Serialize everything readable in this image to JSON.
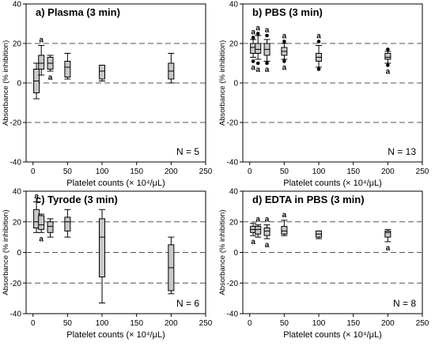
{
  "chart_data": [
    {
      "type": "box",
      "title": "a) Plasma (3 min)",
      "xlabel": "Platelet counts (× 10⁴/μL)",
      "ylabel": "Absorbance (% inhibition)",
      "xlim": [
        -10,
        250
      ],
      "ylim": [
        -40,
        40
      ],
      "xticks": [
        0,
        50,
        100,
        150,
        200,
        250
      ],
      "yticks": [
        -40,
        -20,
        0,
        20,
        40
      ],
      "reference_lines": [
        -20,
        0,
        20
      ],
      "reference_line_style": "dashed",
      "n_label": "N = 5",
      "box_color": "#c8c8c8",
      "boxes": [
        {
          "x": 5,
          "min": -8,
          "q1": -5,
          "median": 1,
          "q3": 7,
          "max": 10,
          "outliers": [],
          "letter": "",
          "letter_pos": "none"
        },
        {
          "x": 12,
          "min": 4,
          "q1": 7,
          "median": 10,
          "q3": 14,
          "max": 19,
          "outliers": [],
          "letter": "a",
          "letter_pos": "above"
        },
        {
          "x": 25,
          "min": 6,
          "q1": 7,
          "median": 10,
          "q3": 13,
          "max": 14,
          "outliers": [],
          "letter": "a",
          "letter_pos": "below"
        },
        {
          "x": 50,
          "min": 2,
          "q1": 3,
          "median": 8,
          "q3": 11,
          "max": 15,
          "outliers": [],
          "letter": "",
          "letter_pos": "none"
        },
        {
          "x": 100,
          "min": 1,
          "q1": 2,
          "median": 6,
          "q3": 9,
          "max": 9,
          "outliers": [],
          "letter": "",
          "letter_pos": "none"
        },
        {
          "x": 200,
          "min": 0,
          "q1": 2,
          "median": 6,
          "q3": 10,
          "max": 15,
          "outliers": [],
          "letter": "",
          "letter_pos": "none"
        }
      ]
    },
    {
      "type": "box",
      "title": "b) PBS (3 min)",
      "xlabel": "Platelet counts (× 10⁴/μL)",
      "ylabel": "Absorbance (% inhibition)",
      "xlim": [
        -10,
        250
      ],
      "ylim": [
        -40,
        40
      ],
      "xticks": [
        0,
        50,
        100,
        150,
        200,
        250
      ],
      "yticks": [
        -40,
        -20,
        0,
        20,
        40
      ],
      "reference_lines": [
        -20,
        0,
        20
      ],
      "reference_line_style": "dashed",
      "n_label": "N = 13",
      "box_color": "#c8c8c8",
      "boxes": [
        {
          "x": 5,
          "min": 13,
          "q1": 15,
          "median": 18,
          "q3": 20,
          "max": 22,
          "outliers": [
            11,
            23
          ],
          "letter": "a",
          "letter_pos": "both"
        },
        {
          "x": 12,
          "min": 12,
          "q1": 15,
          "median": 17,
          "q3": 20,
          "max": 24,
          "outliers": [
            10,
            25
          ],
          "letter": "a",
          "letter_pos": "both"
        },
        {
          "x": 25,
          "min": 11,
          "q1": 14,
          "median": 17,
          "q3": 20,
          "max": 22,
          "outliers": [
            10,
            24
          ],
          "letter": "a",
          "letter_pos": "both"
        },
        {
          "x": 50,
          "min": 12,
          "q1": 14,
          "median": 16,
          "q3": 18,
          "max": 20,
          "outliers": [
            11,
            21
          ],
          "letter": "a",
          "letter_pos": "both"
        },
        {
          "x": 100,
          "min": 8,
          "q1": 11,
          "median": 13,
          "q3": 15,
          "max": 19,
          "outliers": [
            7,
            21
          ],
          "letter": "a",
          "letter_pos": "above"
        },
        {
          "x": 200,
          "min": 10,
          "q1": 12,
          "median": 13,
          "q3": 15,
          "max": 16,
          "outliers": [
            9,
            17
          ],
          "letter": "a",
          "letter_pos": "below"
        }
      ]
    },
    {
      "type": "box",
      "title": "c) Tyrode (3 min)",
      "xlabel": "Platelet counts (× 10⁴/μL)",
      "ylabel": "Absorbance (% inhibition)",
      "xlim": [
        -10,
        250
      ],
      "ylim": [
        -40,
        40
      ],
      "xticks": [
        0,
        50,
        100,
        150,
        200,
        250
      ],
      "yticks": [
        -40,
        -20,
        0,
        20,
        40
      ],
      "reference_lines": [
        -20,
        0,
        20
      ],
      "reference_line_style": "dashed",
      "n_label": "N = 6",
      "box_color": "#c8c8c8",
      "boxes": [
        {
          "x": 5,
          "min": 13,
          "q1": 16,
          "median": 20,
          "q3": 28,
          "max": 33,
          "outliers": [],
          "letter": "a",
          "letter_pos": "above"
        },
        {
          "x": 12,
          "min": 13,
          "q1": 15,
          "median": 18,
          "q3": 24,
          "max": 25,
          "outliers": [],
          "letter": "a",
          "letter_pos": "below"
        },
        {
          "x": 25,
          "min": 10,
          "q1": 13,
          "median": 17,
          "q3": 20,
          "max": 22,
          "outliers": [],
          "letter": "",
          "letter_pos": "none"
        },
        {
          "x": 50,
          "min": 10,
          "q1": 14,
          "median": 20,
          "q3": 23,
          "max": 28,
          "outliers": [],
          "letter": "",
          "letter_pos": "none"
        },
        {
          "x": 100,
          "min": -33,
          "q1": -16,
          "median": 10,
          "q3": 22,
          "max": 28,
          "outliers": [],
          "letter": "",
          "letter_pos": "none"
        },
        {
          "x": 200,
          "min": -27,
          "q1": -25,
          "median": -10,
          "q3": 5,
          "max": 10,
          "outliers": [],
          "letter": "",
          "letter_pos": "none"
        }
      ]
    },
    {
      "type": "box",
      "title": "d) EDTA in PBS (3 min)",
      "xlabel": "Platelet counts (× 10⁴/μL)",
      "ylabel": "Absorbance (% inhibition)",
      "xlim": [
        -10,
        250
      ],
      "ylim": [
        -40,
        40
      ],
      "xticks": [
        0,
        50,
        100,
        150,
        200,
        250
      ],
      "yticks": [
        -40,
        -20,
        0,
        20,
        40
      ],
      "reference_lines": [
        -20,
        0,
        20
      ],
      "reference_line_style": "dashed",
      "n_label": "N = 8",
      "box_color": "#c8c8c8",
      "boxes": [
        {
          "x": 5,
          "min": 11,
          "q1": 13,
          "median": 15,
          "q3": 17,
          "max": 19,
          "outliers": [],
          "letter": "a",
          "letter_pos": "below"
        },
        {
          "x": 12,
          "min": 10,
          "q1": 12,
          "median": 15,
          "q3": 17,
          "max": 18,
          "outliers": [],
          "letter": "a",
          "letter_pos": "above"
        },
        {
          "x": 25,
          "min": 9,
          "q1": 11,
          "median": 14,
          "q3": 16,
          "max": 18,
          "outliers": [],
          "letter": "a",
          "letter_pos": "both"
        },
        {
          "x": 50,
          "min": 11,
          "q1": 12,
          "median": 14,
          "q3": 17,
          "max": 21,
          "outliers": [],
          "letter": "a",
          "letter_pos": "above"
        },
        {
          "x": 100,
          "min": 9,
          "q1": 10,
          "median": 12,
          "q3": 14,
          "max": 14,
          "outliers": [],
          "letter": "",
          "letter_pos": "none"
        },
        {
          "x": 200,
          "min": 7,
          "q1": 10,
          "median": 13,
          "q3": 14,
          "max": 15,
          "outliers": [],
          "letter": "a",
          "letter_pos": "below"
        }
      ]
    }
  ]
}
